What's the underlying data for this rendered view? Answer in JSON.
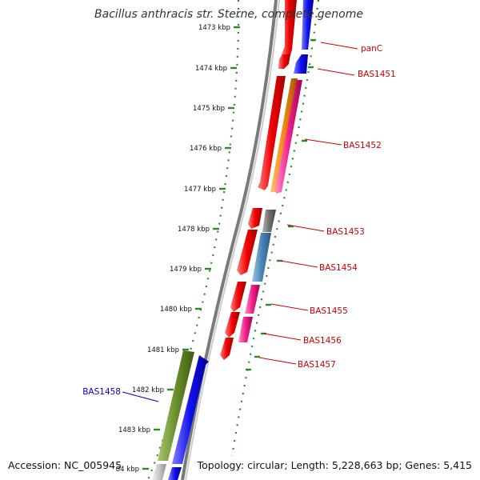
{
  "title": "Bacillus anthracis str. Sterne, complete genome",
  "footer": {
    "accession": "Accession: NC_005945",
    "topology": "Topology: circular; Length: 5,228,663 bp; Genes: 5,415"
  },
  "ticks": [
    "1473 kbp",
    "1474 kbp",
    "1475 kbp",
    "1476 kbp",
    "1477 kbp",
    "1478 kbp",
    "1479 kbp",
    "1480 kbp",
    "1481 kbp",
    "1482 kbp",
    "1483 kbp",
    "84 kbp"
  ],
  "genes": [
    {
      "label": "panC",
      "color": "#cc0000"
    },
    {
      "label": "BAS1451",
      "color": "#cc0000"
    },
    {
      "label": "BAS1452",
      "color": "#cc0000"
    },
    {
      "label": "BAS1453",
      "color": "#cc0000"
    },
    {
      "label": "BAS1454",
      "color": "#cc0000"
    },
    {
      "label": "BAS1455",
      "color": "#cc0000"
    },
    {
      "label": "BAS1456",
      "color": "#cc0000"
    },
    {
      "label": "BAS1457",
      "color": "#cc0000"
    },
    {
      "label": "BAS1458",
      "color": "#0000cc"
    }
  ],
  "colors": {
    "cds": "#e8000a",
    "orf_blue": "#1010ee",
    "orange": "#f08a10",
    "magenta": "#f0208a",
    "grey": "#707070",
    "steel": "#4a86b8",
    "green": "#6a8e2a",
    "backbone": "#888888",
    "ruler": "#2a8a2a"
  }
}
